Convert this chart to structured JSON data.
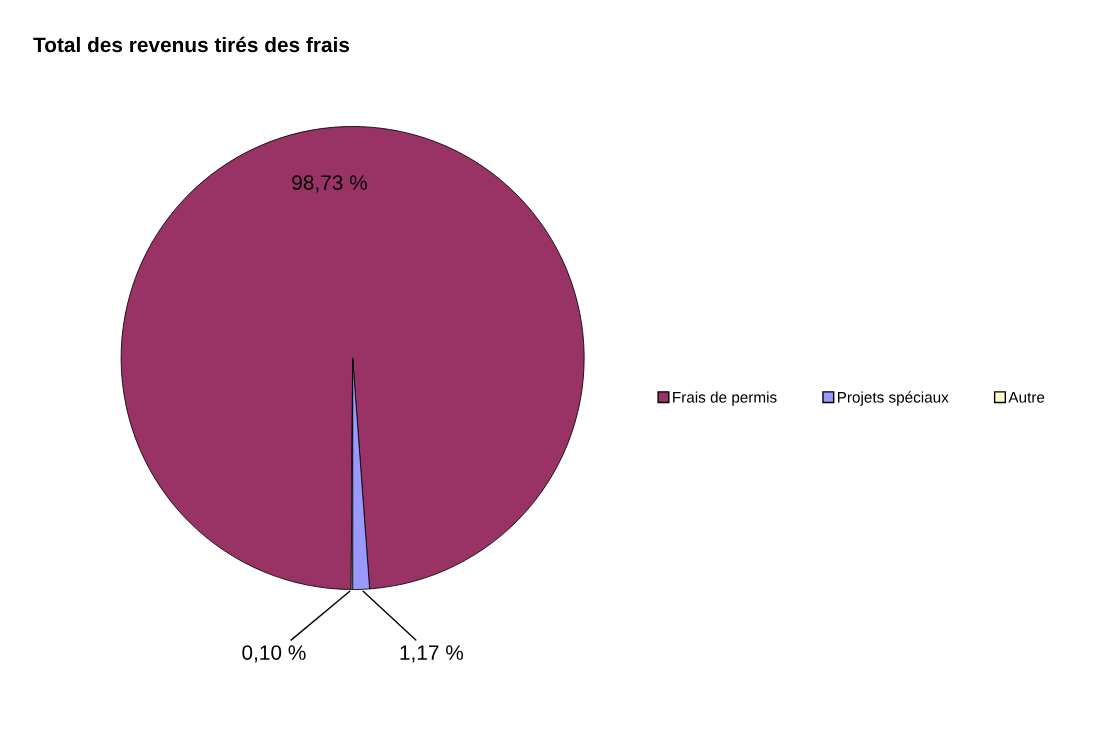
{
  "chart_data": {
    "type": "pie",
    "title": "Total des revenus tirés des frais",
    "categories": [
      "Frais de permis",
      "Projets spéciaux",
      "Autre"
    ],
    "values": [
      98.73,
      1.17,
      0.1
    ],
    "colors": [
      "#993366",
      "#9999ff",
      "#ffffcc"
    ],
    "value_labels": [
      "98,73 %",
      "1,17 %",
      "0,10 %"
    ],
    "legend": "right"
  }
}
